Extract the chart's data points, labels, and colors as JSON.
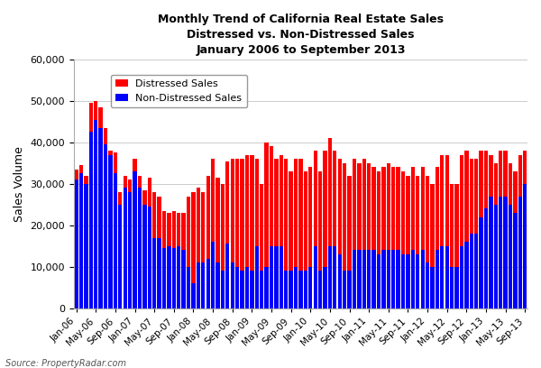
{
  "title_line1": "Monthly Trend of California Real Estate Sales",
  "title_line2": "Distressed vs. Non-Distressed Sales",
  "title_line3": "January 2006 to September 2013",
  "ylabel": "Sales Volume",
  "source": "Source: PropertyRadar.com",
  "distressed_color": "#FF0000",
  "non_distressed_color": "#0000FF",
  "ylim": [
    0,
    60000
  ],
  "yticks": [
    0,
    10000,
    20000,
    30000,
    40000,
    50000,
    60000
  ],
  "legend_labels": [
    "Distressed Sales",
    "Non-Distressed Sales"
  ],
  "non_distressed": [
    31000,
    32500,
    30000,
    42500,
    45500,
    43500,
    39500,
    37000,
    32500,
    25000,
    29000,
    28000,
    33000,
    29000,
    25000,
    24500,
    17000,
    17000,
    14500,
    15000,
    14500,
    15000,
    14000,
    10000,
    6000,
    11000,
    11000,
    12000,
    16000,
    11000,
    9000,
    15500,
    11000,
    10000,
    9000,
    10000,
    9000,
    15000,
    9000,
    10000,
    15000,
    15000,
    15000,
    9000,
    9000,
    10000,
    9000,
    9000,
    10000,
    15000,
    9000,
    10000,
    15000,
    15000,
    13000,
    9000,
    9000,
    14000,
    14000,
    14000,
    14000,
    14000,
    13000,
    14000,
    14000,
    14000,
    14000,
    13000,
    13000,
    14000,
    13000,
    14000,
    11000,
    10000,
    14000,
    15000,
    15000,
    10000,
    10000,
    15000,
    16000,
    18000,
    18000,
    22000,
    24000,
    27000,
    25000,
    27000,
    27000,
    25000,
    23000,
    27000,
    30000
  ],
  "distressed": [
    2500,
    2000,
    2000,
    7000,
    4500,
    5000,
    4000,
    1000,
    5000,
    3000,
    3000,
    3000,
    3000,
    3000,
    3500,
    7000,
    11000,
    10000,
    9000,
    8000,
    9000,
    8000,
    9000,
    17000,
    22000,
    18000,
    17000,
    20000,
    20000,
    20500,
    21000,
    20000,
    25000,
    26000,
    27000,
    27000,
    28000,
    21000,
    21000,
    30000,
    24000,
    21000,
    22000,
    27000,
    24000,
    26000,
    27000,
    24000,
    24000,
    23000,
    24000,
    28000,
    26000,
    23000,
    23000,
    26000,
    23000,
    22000,
    21000,
    22000,
    21000,
    20000,
    20000,
    20000,
    21000,
    20000,
    20000,
    20000,
    19000,
    20000,
    19000,
    20000,
    21000,
    20000,
    20000,
    22000,
    22000,
    20000,
    20000,
    22000,
    22000,
    18000,
    18000,
    16000,
    14000,
    10000,
    10000,
    11000,
    11000,
    10000,
    10000,
    10000,
    8000
  ],
  "figsize": [
    6.0,
    4.08
  ],
  "dpi": 100
}
